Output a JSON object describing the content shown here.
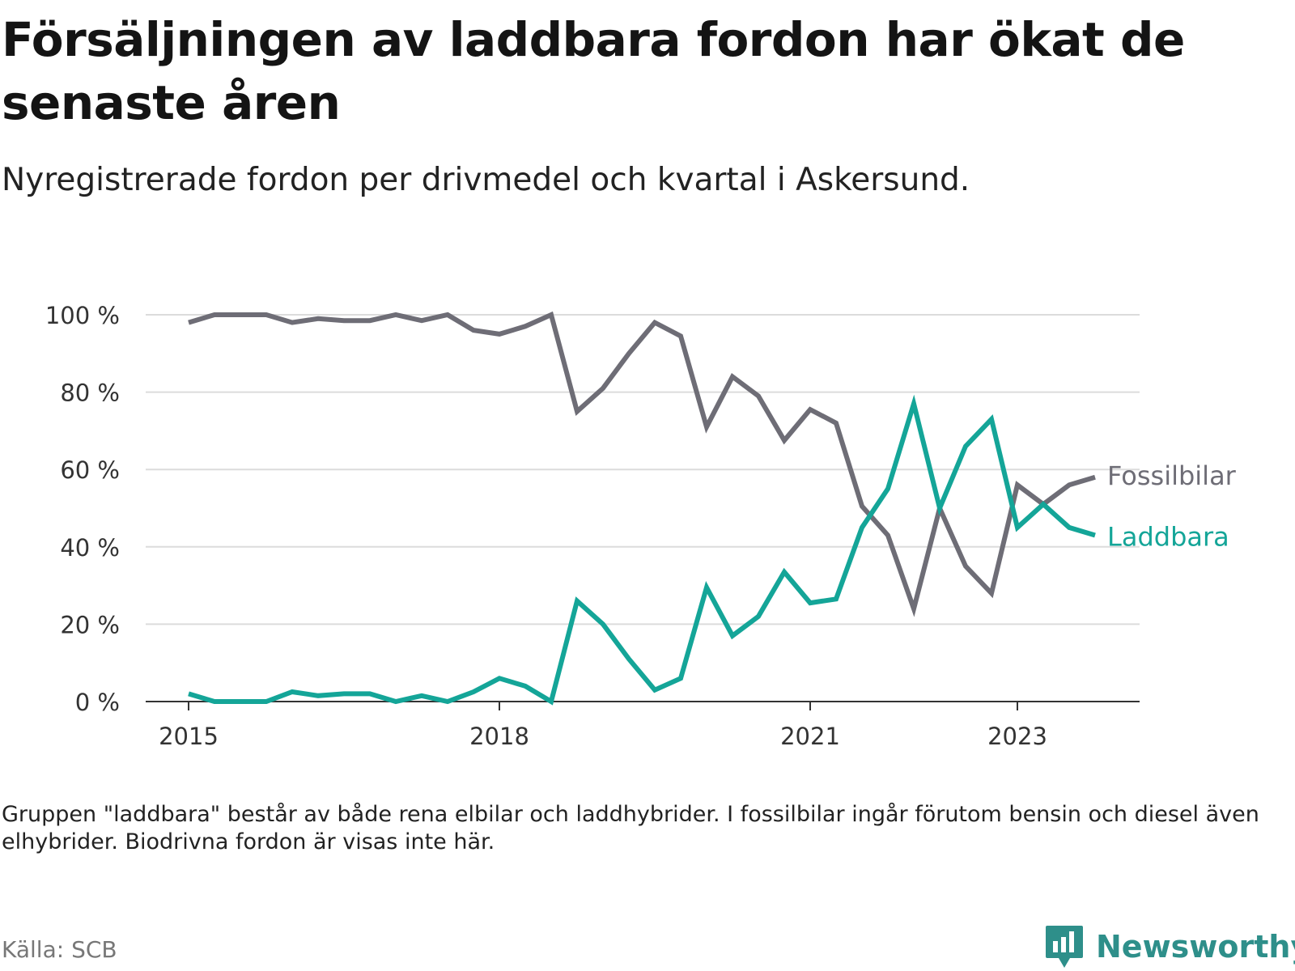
{
  "title": "Försäljningen av laddbara fordon har ökat de senaste åren",
  "subtitle": "Nyregistrerade fordon per drivmedel och kvartal i Askersund.",
  "note": "Gruppen \"laddbara\" består av både rena elbilar och laddhybrider. I fossilbilar ingår förutom bensin och diesel även elhybrider. Biodrivna fordon är visas inte här.",
  "source": "Källa: SCB",
  "brand": {
    "name": "Newsworthy",
    "icon": "newsworthy-logo-icon"
  },
  "colors": {
    "fossil": "#6e6d76",
    "laddbara": "#14a598",
    "grid": "#dcdcdc",
    "axis": "#333333",
    "brand": "#2e8f8a"
  },
  "chart_data": {
    "type": "line",
    "title": "Försäljningen av laddbara fordon har ökat de senaste åren",
    "xlabel": "",
    "ylabel": "",
    "x_range": [
      2015.0,
      2023.75
    ],
    "ylim": [
      0,
      100
    ],
    "grid": true,
    "x_ticks": [
      {
        "value": 2015,
        "label": "2015"
      },
      {
        "value": 2018,
        "label": "2018"
      },
      {
        "value": 2021,
        "label": "2021"
      },
      {
        "value": 2023,
        "label": "2023"
      }
    ],
    "y_ticks": [
      {
        "value": 0,
        "label": "0 %"
      },
      {
        "value": 20,
        "label": "20 %"
      },
      {
        "value": 40,
        "label": "40 %"
      },
      {
        "value": 60,
        "label": "60 %"
      },
      {
        "value": 80,
        "label": "80 %"
      },
      {
        "value": 100,
        "label": "100 %"
      }
    ],
    "x": [
      2015.0,
      2015.25,
      2015.5,
      2015.75,
      2016.0,
      2016.25,
      2016.5,
      2016.75,
      2017.0,
      2017.25,
      2017.5,
      2017.75,
      2018.0,
      2018.25,
      2018.5,
      2018.75,
      2019.0,
      2019.25,
      2019.5,
      2019.75,
      2020.0,
      2020.25,
      2020.5,
      2020.75,
      2021.0,
      2021.25,
      2021.5,
      2021.75,
      2022.0,
      2022.25,
      2022.5,
      2022.75,
      2023.0,
      2023.25,
      2023.5,
      2023.75
    ],
    "series": [
      {
        "name": "Fossilbilar",
        "label": "Fossilbilar",
        "color_key": "fossil",
        "values": [
          98,
          100,
          100,
          100,
          98,
          99,
          98.5,
          98.5,
          100,
          98.5,
          100,
          96,
          95,
          97,
          100,
          75,
          81,
          90,
          98,
          94.5,
          71,
          84,
          79,
          67.5,
          75.5,
          72,
          50.5,
          43,
          24,
          50,
          35,
          28,
          56,
          51,
          56,
          58
        ]
      },
      {
        "name": "Laddbara",
        "label": "Laddbara",
        "color_key": "laddbara",
        "values": [
          2,
          0,
          0,
          0,
          2.5,
          1.5,
          2,
          2,
          0,
          1.5,
          0,
          2.5,
          6,
          4,
          0,
          26,
          20,
          11,
          3,
          6,
          29.5,
          17,
          22,
          33.5,
          25.5,
          26.5,
          45,
          55,
          77,
          50,
          66,
          73,
          45,
          51,
          45,
          43
        ]
      }
    ]
  }
}
